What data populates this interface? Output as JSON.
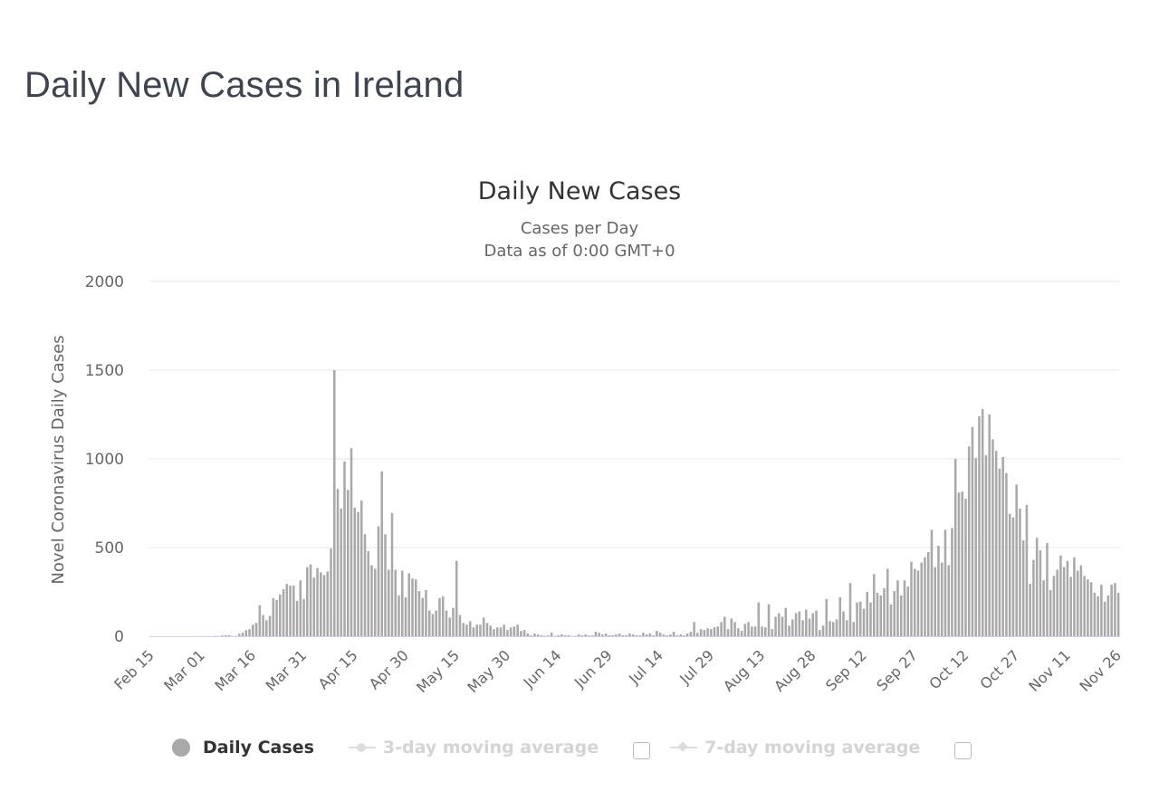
{
  "page": {
    "title": "Daily New Cases in Ireland"
  },
  "legend": {
    "items": [
      {
        "label": "Daily Cases",
        "active": true,
        "color": "#a9a9a9"
      },
      {
        "label": "3-day moving average",
        "active": false,
        "color": "#dddddd",
        "marker": "circle"
      },
      {
        "label": "7-day moving average",
        "active": false,
        "color": "#dddddd",
        "marker": "diamond"
      }
    ]
  },
  "chart_data": {
    "type": "bar",
    "title": "Daily New Cases",
    "subtitle": [
      "Cases per Day",
      "Data as of 0:00 GMT+0"
    ],
    "xlabel": "",
    "ylabel": "Novel Coronavirus Daily Cases",
    "ylim": [
      0,
      2000
    ],
    "yticks": [
      0,
      500,
      1000,
      1500,
      2000
    ],
    "grid": true,
    "bar_color": "#a9a9a9",
    "x_start": "2020-02-15",
    "x_end": "2020-11-29",
    "xticks": [
      "Feb 15",
      "Mar 01",
      "Mar 16",
      "Mar 31",
      "Apr 15",
      "Apr 30",
      "May 15",
      "May 30",
      "Jun 14",
      "Jun 29",
      "Jul 14",
      "Jul 29",
      "Aug 13",
      "Aug 28",
      "Sep 12",
      "Sep 27",
      "Oct 12",
      "Oct 27",
      "Nov 11",
      "Nov 26"
    ],
    "series": [
      {
        "values": [
          0,
          0,
          0,
          0,
          0,
          0,
          0,
          0,
          0,
          0,
          0,
          0,
          0,
          0,
          0,
          1,
          0,
          1,
          0,
          2,
          1,
          5,
          5,
          6,
          1,
          2,
          14,
          20,
          34,
          40,
          65,
          75,
          175,
          120,
          90,
          115,
          215,
          205,
          235,
          265,
          295,
          285,
          285,
          200,
          315,
          210,
          390,
          405,
          330,
          385,
          360,
          345,
          365,
          495,
          1500,
          830,
          720,
          985,
          825,
          1060,
          725,
          700,
          765,
          575,
          480,
          400,
          380,
          620,
          930,
          575,
          375,
          695,
          375,
          230,
          370,
          220,
          355,
          325,
          320,
          255,
          215,
          260,
          145,
          125,
          145,
          215,
          225,
          145,
          105,
          160,
          425,
          120,
          75,
          65,
          85,
          50,
          65,
          65,
          105,
          75,
          60,
          40,
          50,
          50,
          65,
          35,
          50,
          55,
          65,
          30,
          35,
          15,
          5,
          15,
          10,
          5,
          2,
          5,
          20,
          2,
          5,
          10,
          5,
          5,
          1,
          2,
          10,
          5,
          10,
          5,
          5,
          25,
          20,
          10,
          15,
          5,
          5,
          10,
          15,
          5,
          5,
          15,
          10,
          5,
          5,
          20,
          10,
          15,
          5,
          30,
          20,
          10,
          5,
          10,
          25,
          5,
          10,
          5,
          15,
          25,
          80,
          20,
          40,
          35,
          45,
          40,
          50,
          55,
          80,
          110,
          40,
          100,
          80,
          45,
          30,
          70,
          80,
          55,
          55,
          190,
          55,
          50,
          180,
          40,
          110,
          130,
          110,
          160,
          60,
          95,
          130,
          140,
          90,
          150,
          100,
          130,
          145,
          35,
          60,
          210,
          85,
          80,
          95,
          220,
          140,
          90,
          300,
          80,
          190,
          195,
          155,
          250,
          190,
          350,
          245,
          230,
          270,
          380,
          180,
          255,
          315,
          230,
          315,
          280,
          420,
          380,
          370,
          415,
          445,
          475,
          600,
          390,
          510,
          415,
          600,
          400,
          610,
          1000,
          810,
          815,
          775,
          1070,
          1180,
          1005,
          1240,
          1280,
          1020,
          1250,
          1110,
          1045,
          945,
          1010,
          920,
          690,
          670,
          855,
          720,
          540,
          740,
          295,
          430,
          555,
          485,
          315,
          525,
          260,
          340,
          375,
          455,
          390,
          425,
          335,
          445,
          370,
          400,
          340,
          320,
          305,
          245,
          225,
          290,
          195,
          230,
          290,
          300,
          245
        ]
      }
    ]
  }
}
